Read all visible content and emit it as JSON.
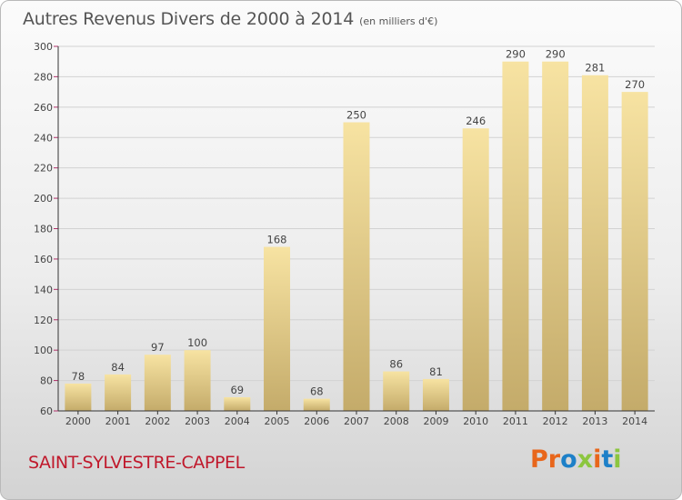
{
  "header": {
    "title": "Autres Revenus Divers de 2000 à 2014",
    "unit": "(en milliers d'€)"
  },
  "footer": {
    "commune": "SAINT-SYLVESTRE-CAPPEL",
    "logo": [
      "P",
      "r",
      "o",
      "x",
      "i",
      "t",
      "i"
    ]
  },
  "colors": {
    "bar_light": "#f7e3a2",
    "bar_dark": "#c4ab6a",
    "commune": "#c0182b",
    "axis": "#333333",
    "y_tick_mark": "#b0306a",
    "logo": [
      "#e8661b",
      "#e8661b",
      "#1d80c8",
      "#8cc63f",
      "#e8661b",
      "#1d80c8",
      "#8cc63f"
    ]
  },
  "chart_data": {
    "type": "bar",
    "categories": [
      "2000",
      "2001",
      "2002",
      "2003",
      "2004",
      "2005",
      "2006",
      "2007",
      "2008",
      "2009",
      "2010",
      "2011",
      "2012",
      "2013",
      "2014"
    ],
    "values": [
      78,
      84,
      97,
      100,
      69,
      168,
      68,
      250,
      86,
      81,
      246,
      290,
      290,
      281,
      270
    ],
    "ylim": [
      60,
      300
    ],
    "yticks": [
      60,
      80,
      100,
      120,
      140,
      160,
      180,
      200,
      220,
      240,
      260,
      280,
      300
    ],
    "grid": true,
    "legend": "none"
  }
}
